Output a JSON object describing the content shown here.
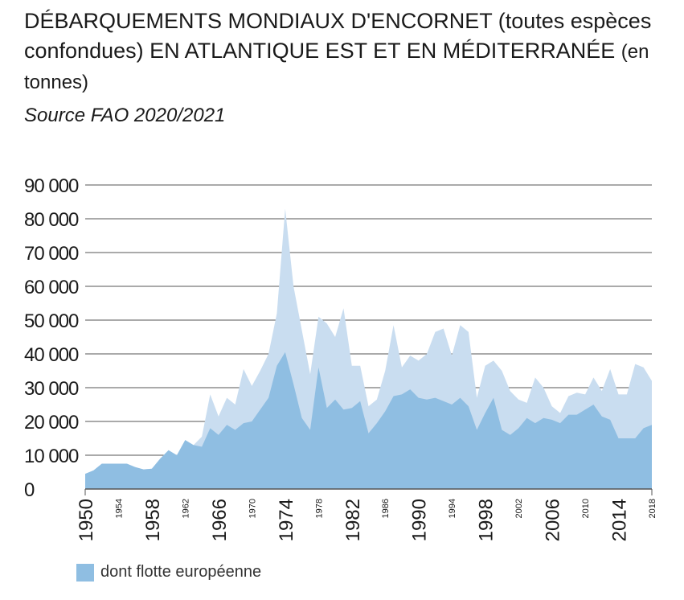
{
  "header": {
    "title_main": "DÉBARQUEMENTS MONDIAUX D'ENCORNET (toutes espèces confondues) EN ATLANTIQUE EST ET EN MÉDITERRANÉE",
    "title_unit": "(en tonnes)",
    "source": "Source FAO 2020/2021"
  },
  "colors": {
    "total": "#c9ddf0",
    "europe": "#8fbee2",
    "grid": "#555555",
    "text": "#1a1a1a"
  },
  "legend": {
    "label": "dont flotte européenne"
  },
  "chart_data": {
    "type": "area",
    "title": "DÉBARQUEMENTS MONDIAUX D'ENCORNET (toutes espèces confondues) EN ATLANTIQUE EST ET EN MÉDITERRANÉE (en tonnes)",
    "xlabel": "",
    "ylabel": "",
    "ylim": [
      0,
      90000
    ],
    "yticks": [
      0,
      10000,
      20000,
      30000,
      40000,
      50000,
      60000,
      70000,
      80000,
      90000
    ],
    "ytick_labels": [
      "0",
      "10 000",
      "20 000",
      "30 000",
      "40 000",
      "50 000",
      "60 000",
      "70 000",
      "80 000",
      "90 000"
    ],
    "grid": true,
    "legend_position": "bottom-left",
    "xticks_major": [
      1950,
      1958,
      1966,
      1974,
      1982,
      1990,
      1998,
      2006,
      2014
    ],
    "xticks_minor": [
      1954,
      1962,
      1970,
      1978,
      1986,
      1994,
      2002,
      2010,
      2018
    ],
    "x": [
      1950,
      1951,
      1952,
      1953,
      1954,
      1955,
      1956,
      1957,
      1958,
      1959,
      1960,
      1961,
      1962,
      1963,
      1964,
      1965,
      1966,
      1967,
      1968,
      1969,
      1970,
      1971,
      1972,
      1973,
      1974,
      1975,
      1976,
      1977,
      1978,
      1979,
      1980,
      1981,
      1982,
      1983,
      1984,
      1985,
      1986,
      1987,
      1988,
      1989,
      1990,
      1991,
      1992,
      1993,
      1994,
      1995,
      1996,
      1997,
      1998,
      1999,
      2000,
      2001,
      2002,
      2003,
      2004,
      2005,
      2006,
      2007,
      2008,
      2009,
      2010,
      2011,
      2012,
      2013,
      2014,
      2015,
      2016,
      2017,
      2018
    ],
    "series": [
      {
        "key": "total",
        "values": [
          4500,
          5500,
          7500,
          7500,
          7500,
          7500,
          6500,
          5800,
          6000,
          9000,
          11500,
          10000,
          14500,
          13000,
          15500,
          28000,
          21500,
          27000,
          25000,
          35500,
          30500,
          35000,
          40000,
          52000,
          83000,
          60000,
          47000,
          34000,
          51000,
          49000,
          45000,
          53500,
          36500,
          36500,
          24500,
          26500,
          35000,
          48500,
          36000,
          39500,
          38000,
          40000,
          46500,
          47500,
          39500,
          48500,
          46500,
          27000,
          36500,
          38000,
          35000,
          29000,
          26500,
          25500,
          33000,
          30000,
          24500,
          22500,
          27500,
          28500,
          28000,
          33000,
          29000,
          35500,
          28000,
          28000,
          37000,
          36000,
          32000
        ]
      },
      {
        "key": "europe",
        "name": "dont flotte européenne",
        "values": [
          4500,
          5500,
          7500,
          7500,
          7500,
          7500,
          6500,
          5800,
          6000,
          9000,
          11500,
          10000,
          14500,
          13000,
          12500,
          18000,
          16000,
          19000,
          17500,
          19500,
          20000,
          23500,
          27000,
          36500,
          40500,
          31000,
          21000,
          17500,
          36000,
          24000,
          26500,
          23500,
          24000,
          26000,
          16500,
          19500,
          23000,
          27500,
          28000,
          29500,
          27000,
          26500,
          27000,
          26000,
          25000,
          27000,
          24500,
          17500,
          22500,
          27000,
          17500,
          16000,
          18000,
          21000,
          19500,
          21000,
          20500,
          19500,
          22000,
          22000,
          23500,
          25000,
          21500,
          20500,
          15000,
          15000,
          15000,
          18000,
          19000
        ]
      }
    ]
  }
}
